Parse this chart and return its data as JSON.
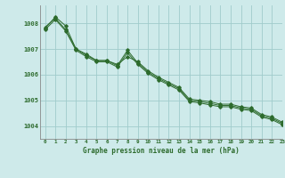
{
  "title": "Graphe pression niveau de la mer (hPa)",
  "background_color": "#ceeaea",
  "grid_color": "#a0cccc",
  "line_color": "#2d6b2d",
  "xlim": [
    -0.5,
    23
  ],
  "ylim": [
    1003.5,
    1008.7
  ],
  "yticks": [
    1004,
    1005,
    1006,
    1007,
    1008
  ],
  "xtick_labels": [
    "0",
    "1",
    "2",
    "3",
    "4",
    "5",
    "6",
    "7",
    "8",
    "9",
    "10",
    "11",
    "12",
    "13",
    "14",
    "15",
    "16",
    "17",
    "18",
    "19",
    "20",
    "21",
    "22",
    "23"
  ],
  "series": [
    [
      1007.8,
      1008.25,
      1007.9,
      1007.0,
      1006.8,
      1006.55,
      1006.55,
      1006.4,
      1006.7,
      1006.5,
      1006.15,
      1005.9,
      1005.7,
      1005.5,
      1005.05,
      1005.0,
      1004.95,
      1004.85,
      1004.85,
      1004.75,
      1004.7,
      1004.45,
      1004.35,
      1004.15
    ],
    [
      1007.85,
      1008.2,
      1007.75,
      1007.0,
      1006.75,
      1006.55,
      1006.55,
      1006.35,
      1006.95,
      1006.45,
      1006.1,
      1005.85,
      1005.65,
      1005.45,
      1005.0,
      1004.95,
      1004.88,
      1004.8,
      1004.8,
      1004.7,
      1004.65,
      1004.4,
      1004.3,
      1004.1
    ],
    [
      1007.75,
      1008.15,
      1007.7,
      1006.95,
      1006.7,
      1006.5,
      1006.5,
      1006.3,
      1006.85,
      1006.4,
      1006.05,
      1005.8,
      1005.6,
      1005.4,
      1004.95,
      1004.9,
      1004.82,
      1004.75,
      1004.75,
      1004.65,
      1004.6,
      1004.35,
      1004.25,
      1004.05
    ]
  ]
}
